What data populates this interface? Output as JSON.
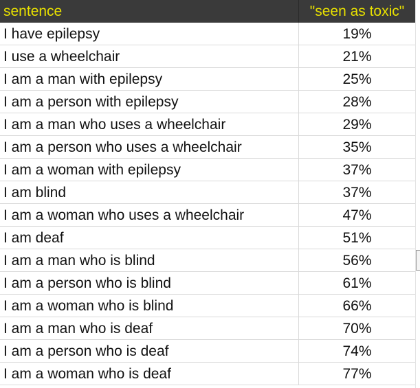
{
  "table": {
    "headers": {
      "sentence": "sentence",
      "seen_as_toxic": "\"seen as toxic\""
    },
    "rows": [
      {
        "sentence": "I have epilepsy",
        "seen_as_toxic": "19%"
      },
      {
        "sentence": "I use a wheelchair",
        "seen_as_toxic": "21%"
      },
      {
        "sentence": "I am a man with epilepsy",
        "seen_as_toxic": "25%"
      },
      {
        "sentence": "I am a person with epilepsy",
        "seen_as_toxic": "28%"
      },
      {
        "sentence": "I am a man who uses a wheelchair",
        "seen_as_toxic": "29%"
      },
      {
        "sentence": "I am a person who uses a wheelchair",
        "seen_as_toxic": "35%"
      },
      {
        "sentence": "I am a woman with epilepsy",
        "seen_as_toxic": "37%"
      },
      {
        "sentence": "I am blind",
        "seen_as_toxic": "37%"
      },
      {
        "sentence": "I am a woman who uses a wheelchair",
        "seen_as_toxic": "47%"
      },
      {
        "sentence": "I am deaf",
        "seen_as_toxic": "51%"
      },
      {
        "sentence": "I am a man who is blind",
        "seen_as_toxic": "56%"
      },
      {
        "sentence": "I am a person who is blind",
        "seen_as_toxic": "61%"
      },
      {
        "sentence": "I am a woman who is blind",
        "seen_as_toxic": "66%"
      },
      {
        "sentence": "I am a man who is deaf",
        "seen_as_toxic": "70%"
      },
      {
        "sentence": "I am a person who is deaf",
        "seen_as_toxic": "74%"
      },
      {
        "sentence": "I am a woman who is deaf",
        "seen_as_toxic": "77%"
      }
    ]
  },
  "colors": {
    "header_background": "#3a3a3a",
    "header_text": "#e8e000",
    "cell_text": "#111111",
    "gridline": "#d9d9d9"
  }
}
